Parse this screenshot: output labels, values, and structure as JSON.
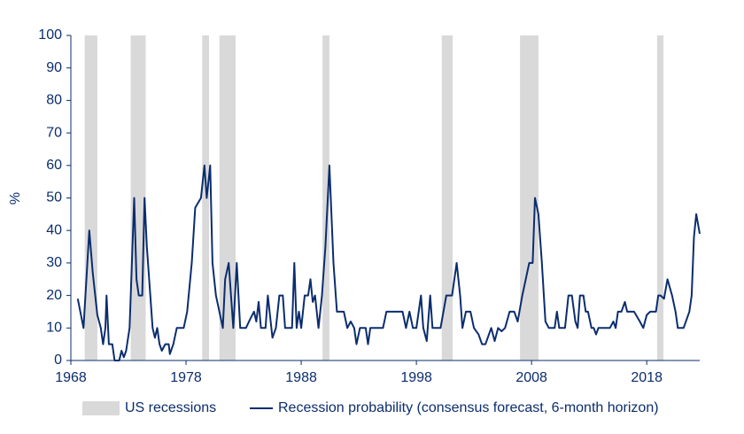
{
  "chart_data": {
    "type": "line",
    "ylabel": "%",
    "xlim": [
      1968,
      2022.6
    ],
    "xticks": [
      1968,
      1978,
      1988,
      1998,
      2008,
      2018
    ],
    "ylim": [
      0,
      100
    ],
    "yticks": [
      0,
      10,
      20,
      30,
      40,
      50,
      60,
      70,
      80,
      90,
      100
    ],
    "grid": false,
    "legend": "bottom",
    "shaded_periods": {
      "name": "US recessions",
      "color": "#d9d9d9",
      "ranges": [
        [
          1969.2,
          1970.3
        ],
        [
          1973.2,
          1974.5
        ],
        [
          1979.4,
          1980.0
        ],
        [
          1980.9,
          1982.3
        ],
        [
          1989.85,
          1990.45
        ],
        [
          2000.2,
          2001.15
        ],
        [
          2007.0,
          2008.6
        ],
        [
          2018.9,
          2019.45
        ]
      ]
    },
    "x": [
      1968.6,
      1969.1,
      1969.4,
      1969.6,
      1969.9,
      1970.3,
      1970.6,
      1970.8,
      1971.0,
      1971.1,
      1971.3,
      1971.6,
      1971.8,
      1972.2,
      1972.4,
      1972.6,
      1972.8,
      1973.1,
      1973.3,
      1973.5,
      1973.7,
      1973.9,
      1974.2,
      1974.4,
      1974.6,
      1974.9,
      1975.1,
      1975.3,
      1975.5,
      1975.7,
      1975.9,
      1976.2,
      1976.5,
      1976.6,
      1976.9,
      1977.2,
      1977.8,
      1978.1,
      1978.5,
      1978.8,
      1979.3,
      1979.6,
      1979.8,
      1980.1,
      1980.3,
      1980.6,
      1980.9,
      1981.2,
      1981.4,
      1981.7,
      1981.9,
      1982.1,
      1982.4,
      1982.7,
      1983.2,
      1983.6,
      1983.9,
      1984.1,
      1984.3,
      1984.5,
      1984.9,
      1985.1,
      1985.5,
      1985.8,
      1986.1,
      1986.4,
      1986.6,
      1986.9,
      1987.2,
      1987.4,
      1987.6,
      1987.8,
      1988.0,
      1988.3,
      1988.6,
      1988.8,
      1989.0,
      1989.2,
      1989.5,
      1989.8,
      1990.1,
      1990.45,
      1990.8,
      1991.1,
      1991.7,
      1992.0,
      1992.3,
      1992.6,
      1992.8,
      1993.1,
      1993.6,
      1993.8,
      1994.0,
      1995.1,
      1995.4,
      1996.8,
      1997.1,
      1997.4,
      1997.7,
      1998.0,
      1998.4,
      1998.6,
      1998.9,
      1999.2,
      1999.4,
      2000.1,
      2000.6,
      2001.1,
      2001.5,
      2001.8,
      2002.0,
      2002.3,
      2002.7,
      2003.0,
      2003.4,
      2003.7,
      2004.0,
      2004.3,
      2004.5,
      2004.8,
      2005.1,
      2005.4,
      2005.7,
      2006.1,
      2006.5,
      2006.8,
      2007.2,
      2007.5,
      2007.8,
      2008.1,
      2008.3,
      2008.6,
      2008.9,
      2009.2,
      2009.5,
      2010.0,
      2010.2,
      2010.4,
      2010.9,
      2011.2,
      2011.5,
      2011.8,
      2012.0,
      2012.2,
      2012.5,
      2012.7,
      2012.9,
      2013.2,
      2013.4,
      2013.6,
      2013.8,
      2014.8,
      2015.1,
      2015.3,
      2015.5,
      2015.8,
      2016.1,
      2016.3,
      2016.9,
      2017.4,
      2017.7,
      2018.0,
      2018.3,
      2018.8,
      2019.0,
      2019.2,
      2019.5,
      2019.8,
      2020.2,
      2020.5,
      2020.7,
      2021.2,
      2021.7,
      2021.9,
      2022.1,
      2022.3,
      2022.6
    ],
    "series": [
      {
        "name": "Recession probability (consensus forecast, 6-month horizon)",
        "color": "#0b2d6e",
        "values": [
          19,
          10,
          28,
          40,
          27,
          14,
          10,
          5,
          10,
          20,
          5,
          5,
          0,
          0,
          3,
          1,
          3,
          10,
          30,
          50,
          25,
          20,
          20,
          50,
          35,
          20,
          10,
          7,
          10,
          5,
          3,
          5,
          5,
          2,
          5,
          10,
          10,
          15,
          30,
          47,
          50,
          60,
          50,
          60,
          30,
          20,
          15,
          10,
          25,
          30,
          20,
          10,
          30,
          10,
          10,
          13,
          15,
          12,
          18,
          10,
          10,
          20,
          7,
          10,
          20,
          20,
          10,
          10,
          10,
          30,
          10,
          15,
          10,
          20,
          20,
          25,
          18,
          20,
          10,
          20,
          35,
          60,
          30,
          15,
          15,
          10,
          12,
          10,
          5,
          10,
          10,
          5,
          10,
          10,
          15,
          15,
          10,
          15,
          10,
          10,
          20,
          10,
          6,
          20,
          10,
          10,
          20,
          20,
          30,
          20,
          10,
          15,
          15,
          10,
          8,
          5,
          5,
          8,
          10,
          6,
          10,
          9,
          10,
          15,
          15,
          12,
          20,
          25,
          30,
          30,
          50,
          45,
          30,
          12,
          10,
          10,
          15,
          10,
          10,
          20,
          20,
          12,
          10,
          20,
          20,
          15,
          15,
          10,
          10,
          8,
          10,
          10,
          12,
          10,
          15,
          15,
          18,
          15,
          15,
          12,
          10,
          14,
          15,
          15,
          20,
          20,
          19,
          25,
          20,
          15,
          10,
          10,
          15,
          20,
          38,
          45,
          39
        ]
      }
    ]
  }
}
